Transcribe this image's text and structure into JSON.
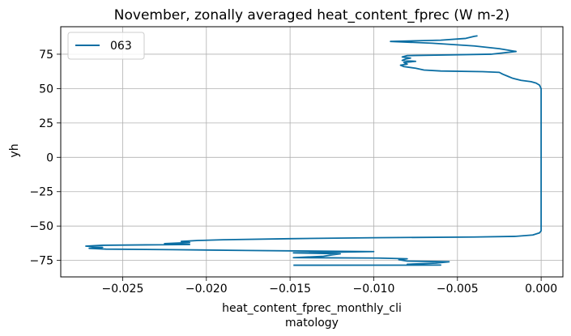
{
  "chart_data": {
    "type": "line",
    "title": "November, zonally averaged heat_content_fprec (W m-2)",
    "xlabel_lines": [
      "heat_content_fprec_monthly_cli",
      "matology"
    ],
    "ylabel": "yh",
    "xlim": [
      -0.0287,
      0.0013
    ],
    "ylim": [
      -87,
      95
    ],
    "xticks": [
      -0.025,
      -0.02,
      -0.015,
      -0.01,
      -0.005,
      0.0
    ],
    "xtick_labels": [
      "−0.025",
      "−0.020",
      "−0.015",
      "−0.010",
      "−0.005",
      "0.000"
    ],
    "yticks": [
      -75,
      -50,
      -25,
      0,
      25,
      50,
      75
    ],
    "ytick_labels": [
      "−75",
      "−50",
      "−25",
      "0",
      "25",
      "50",
      "75"
    ],
    "grid": true,
    "legend": {
      "position": "top-left",
      "entries": [
        "063"
      ]
    },
    "series": [
      {
        "name": "063",
        "color": "#0b6ea3",
        "points": [
          [
            -0.0148,
            -78.5
          ],
          [
            -0.006,
            -78.4
          ],
          [
            -0.008,
            -77.8
          ],
          [
            -0.0063,
            -77.0
          ],
          [
            -0.0055,
            -76.0
          ],
          [
            -0.008,
            -75.5
          ],
          [
            -0.0085,
            -74.5
          ],
          [
            -0.008,
            -73.8
          ],
          [
            -0.0097,
            -73.3
          ],
          [
            -0.0148,
            -73.0
          ],
          [
            -0.013,
            -72.0
          ],
          [
            -0.0125,
            -71.0
          ],
          [
            -0.012,
            -70.2
          ],
          [
            -0.0148,
            -69.5
          ],
          [
            -0.01,
            -68.6
          ],
          [
            -0.0175,
            -67.8
          ],
          [
            -0.022,
            -67.2
          ],
          [
            -0.026,
            -66.8
          ],
          [
            -0.027,
            -66.2
          ],
          [
            -0.0262,
            -65.5
          ],
          [
            -0.0272,
            -64.6
          ],
          [
            -0.0262,
            -64.0
          ],
          [
            -0.021,
            -63.4
          ],
          [
            -0.0225,
            -62.8
          ],
          [
            -0.021,
            -62.0
          ],
          [
            -0.0215,
            -61.2
          ],
          [
            -0.0205,
            -60.5
          ],
          [
            -0.019,
            -60.0
          ],
          [
            -0.015,
            -59.2
          ],
          [
            -0.01,
            -58.5
          ],
          [
            -0.004,
            -58.0
          ],
          [
            -0.0015,
            -57.5
          ],
          [
            -0.0005,
            -56.5
          ],
          [
            -0.0001,
            -55.0
          ],
          [
            0.0,
            -53.5
          ],
          [
            0.0,
            -30.0
          ],
          [
            0.0,
            0.0
          ],
          [
            0.0,
            30.0
          ],
          [
            0.0,
            50.0
          ],
          [
            -0.0001,
            52.5
          ],
          [
            -0.0003,
            54.0
          ],
          [
            -0.0006,
            55.0
          ],
          [
            -0.0012,
            56.0
          ],
          [
            -0.0017,
            57.5
          ],
          [
            -0.002,
            59.0
          ],
          [
            -0.0023,
            60.5
          ],
          [
            -0.0025,
            61.8
          ],
          [
            -0.0035,
            62.3
          ],
          [
            -0.006,
            62.8
          ],
          [
            -0.007,
            63.5
          ],
          [
            -0.0075,
            64.8
          ],
          [
            -0.0082,
            66.0
          ],
          [
            -0.0084,
            67.0
          ],
          [
            -0.008,
            67.8
          ],
          [
            -0.0082,
            69.0
          ],
          [
            -0.0075,
            69.8
          ],
          [
            -0.0083,
            70.5
          ],
          [
            -0.0081,
            71.5
          ],
          [
            -0.0078,
            72.2
          ],
          [
            -0.0083,
            73.0
          ],
          [
            -0.008,
            74.0
          ],
          [
            -0.003,
            75.0
          ],
          [
            -0.0015,
            77.0
          ],
          [
            -0.0025,
            79.0
          ],
          [
            -0.004,
            81.0
          ],
          [
            -0.0065,
            83.0
          ],
          [
            -0.009,
            84.3
          ],
          [
            -0.006,
            85.2
          ],
          [
            -0.0045,
            86.5
          ],
          [
            -0.004,
            88.0
          ],
          [
            -0.0038,
            88.4
          ]
        ]
      }
    ]
  }
}
